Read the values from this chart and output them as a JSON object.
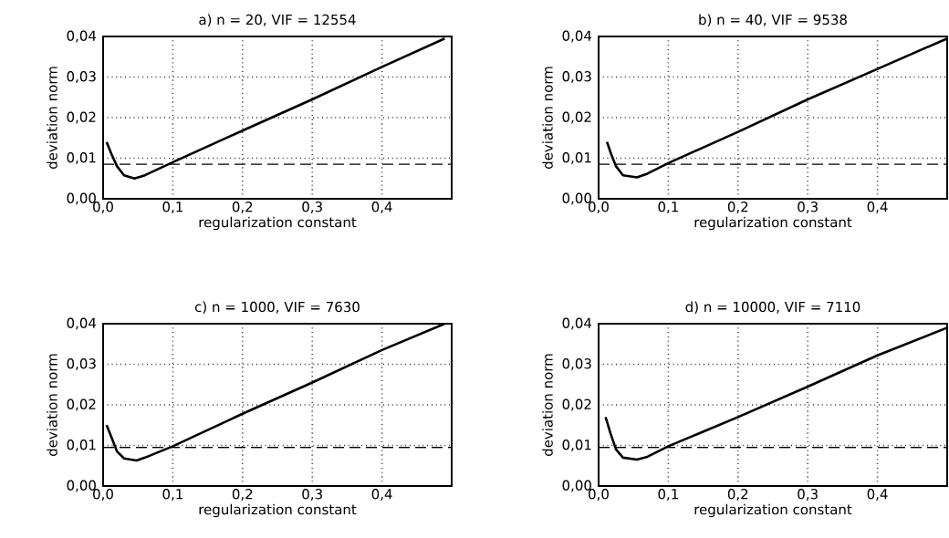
{
  "chart_data": [
    {
      "type": "line",
      "title": "a) n = 20, VIF = 12554",
      "xlabel": "regularization constant",
      "ylabel": "deviation norm",
      "xlim": [
        0,
        0.5
      ],
      "ylim": [
        0,
        0.04
      ],
      "xticks": [
        {
          "value": 0,
          "label": "0,0"
        },
        {
          "value": 0.1,
          "label": "0,1"
        },
        {
          "value": 0.2,
          "label": "0,2"
        },
        {
          "value": 0.3,
          "label": "0,3"
        },
        {
          "value": 0.4,
          "label": "0,4"
        }
      ],
      "yticks": [
        {
          "value": 0,
          "label": "0,00"
        },
        {
          "value": 0.01,
          "label": "0,01"
        },
        {
          "value": 0.02,
          "label": "0,02"
        },
        {
          "value": 0.03,
          "label": "0,03"
        },
        {
          "value": 0.04,
          "label": "0,04"
        }
      ],
      "grid": true,
      "marker": "none",
      "line_style": "solid",
      "series": [
        {
          "color": "#000000",
          "x": [
            0.005,
            0.012,
            0.02,
            0.03,
            0.045,
            0.06,
            0.1,
            0.2,
            0.3,
            0.4,
            0.49
          ],
          "values": [
            0.014,
            0.011,
            0.008,
            0.0058,
            0.005,
            0.0058,
            0.009,
            0.0168,
            0.0245,
            0.0325,
            0.0395
          ]
        }
      ],
      "ref_lines": [
        {
          "axis": "y",
          "value": 0.0085,
          "color": "#000000",
          "line_style": "dashed"
        }
      ]
    },
    {
      "type": "line",
      "title": "b) n = 40, VIF = 9538",
      "xlabel": "regularization constant",
      "ylabel": "deviation norm",
      "xlim": [
        0,
        0.5
      ],
      "ylim": [
        0,
        0.04
      ],
      "xticks": [
        {
          "value": 0,
          "label": "0,0"
        },
        {
          "value": 0.1,
          "label": "0,1"
        },
        {
          "value": 0.2,
          "label": "0,2"
        },
        {
          "value": 0.3,
          "label": "0,3"
        },
        {
          "value": 0.4,
          "label": "0,4"
        }
      ],
      "yticks": [
        {
          "value": 0,
          "label": "0,00"
        },
        {
          "value": 0.01,
          "label": "0,01"
        },
        {
          "value": 0.02,
          "label": "0,02"
        },
        {
          "value": 0.03,
          "label": "0,03"
        },
        {
          "value": 0.04,
          "label": "0,04"
        }
      ],
      "grid": true,
      "marker": "none",
      "line_style": "solid",
      "series": [
        {
          "color": "#000000",
          "x": [
            0.012,
            0.018,
            0.025,
            0.035,
            0.055,
            0.07,
            0.1,
            0.2,
            0.3,
            0.4,
            0.5
          ],
          "values": [
            0.014,
            0.011,
            0.008,
            0.0058,
            0.0053,
            0.0062,
            0.0088,
            0.0165,
            0.0245,
            0.032,
            0.0395
          ]
        }
      ],
      "ref_lines": [
        {
          "axis": "y",
          "value": 0.0085,
          "color": "#000000",
          "line_style": "dashed"
        }
      ]
    },
    {
      "type": "line",
      "title": "c) n = 1000, VIF = 7630",
      "xlabel": "regularization constant",
      "ylabel": "deviation norm",
      "xlim": [
        0,
        0.5
      ],
      "ylim": [
        0,
        0.04
      ],
      "xticks": [
        {
          "value": 0,
          "label": "0,0"
        },
        {
          "value": 0.1,
          "label": "0,1"
        },
        {
          "value": 0.2,
          "label": "0,2"
        },
        {
          "value": 0.3,
          "label": "0,3"
        },
        {
          "value": 0.4,
          "label": "0,4"
        }
      ],
      "yticks": [
        {
          "value": 0,
          "label": "0,00"
        },
        {
          "value": 0.01,
          "label": "0,01"
        },
        {
          "value": 0.02,
          "label": "0,02"
        },
        {
          "value": 0.03,
          "label": "0,03"
        },
        {
          "value": 0.04,
          "label": "0,04"
        }
      ],
      "grid": true,
      "marker": "none",
      "line_style": "solid",
      "series": [
        {
          "color": "#000000",
          "x": [
            0.005,
            0.012,
            0.02,
            0.03,
            0.048,
            0.06,
            0.1,
            0.2,
            0.3,
            0.4,
            0.49
          ],
          "values": [
            0.015,
            0.012,
            0.0085,
            0.0068,
            0.0063,
            0.007,
            0.0098,
            0.0178,
            0.0255,
            0.0335,
            0.04
          ]
        }
      ],
      "ref_lines": [
        {
          "axis": "y",
          "value": 0.0095,
          "color": "#000000",
          "line_style": "dashed"
        }
      ]
    },
    {
      "type": "line",
      "title": "d) n = 10000, VIF = 7110",
      "xlabel": "regularization constant",
      "ylabel": "deviation norm",
      "xlim": [
        0,
        0.5
      ],
      "ylim": [
        0,
        0.04
      ],
      "xticks": [
        {
          "value": 0,
          "label": "0,0"
        },
        {
          "value": 0.1,
          "label": "0,1"
        },
        {
          "value": 0.2,
          "label": "0,2"
        },
        {
          "value": 0.3,
          "label": "0,3"
        },
        {
          "value": 0.4,
          "label": "0,4"
        }
      ],
      "yticks": [
        {
          "value": 0,
          "label": "0,00"
        },
        {
          "value": 0.01,
          "label": "0,01"
        },
        {
          "value": 0.02,
          "label": "0,02"
        },
        {
          "value": 0.03,
          "label": "0,03"
        },
        {
          "value": 0.04,
          "label": "0,04"
        }
      ],
      "grid": true,
      "marker": "none",
      "line_style": "solid",
      "series": [
        {
          "color": "#000000",
          "x": [
            0.01,
            0.017,
            0.025,
            0.035,
            0.055,
            0.07,
            0.1,
            0.2,
            0.3,
            0.4,
            0.5
          ],
          "values": [
            0.017,
            0.013,
            0.009,
            0.007,
            0.0065,
            0.0072,
            0.0098,
            0.017,
            0.0245,
            0.0322,
            0.039
          ]
        }
      ],
      "ref_lines": [
        {
          "axis": "y",
          "value": 0.0095,
          "color": "#000000",
          "line_style": "dashed"
        }
      ]
    }
  ]
}
